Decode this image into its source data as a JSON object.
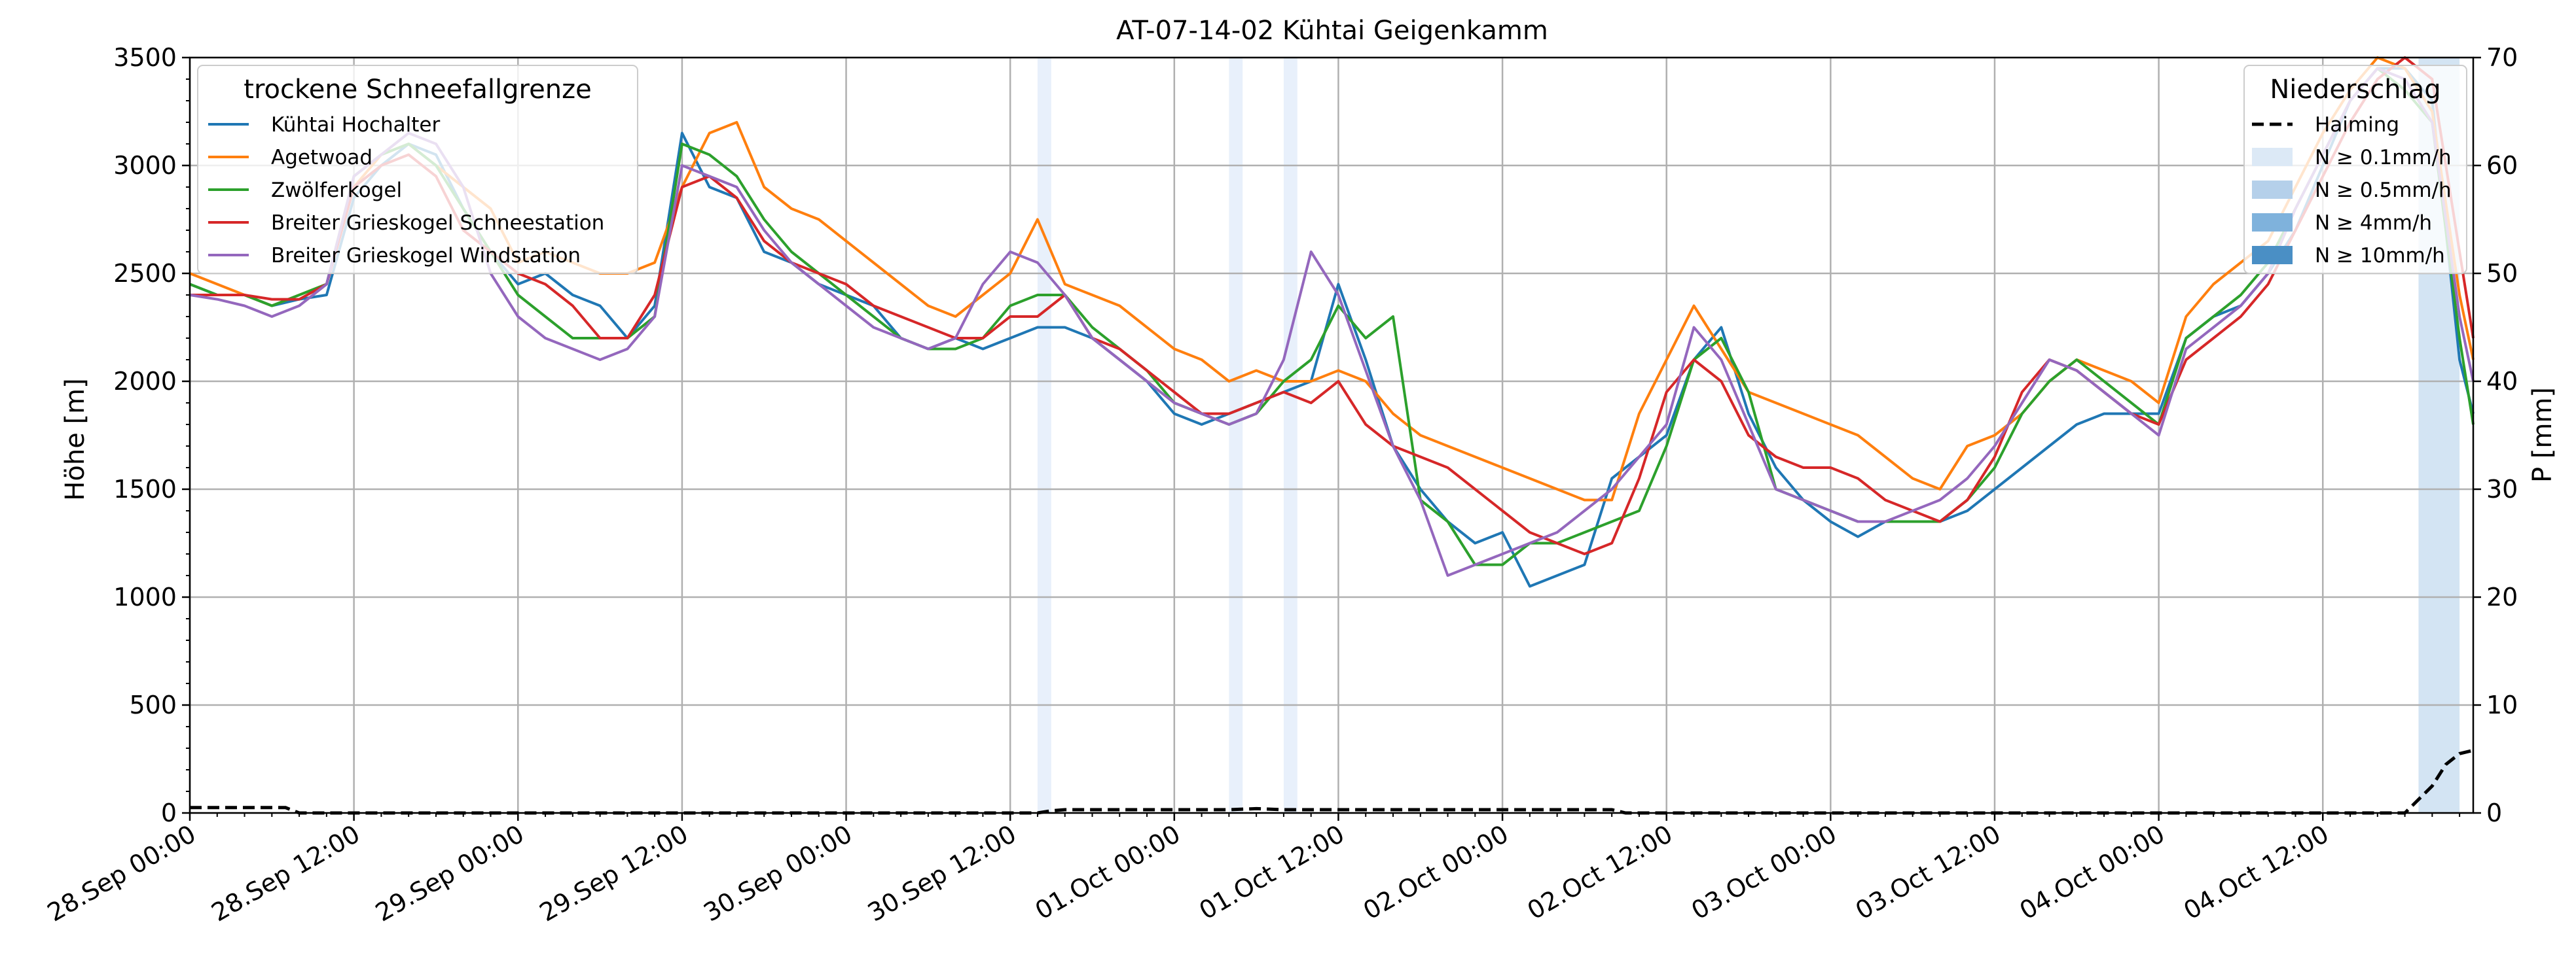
{
  "chart_data": {
    "type": "line",
    "title": "AT-07-14-02 Kühtai Geigenkamm",
    "ylabel_left": "Höhe [m]",
    "ylabel_right": "P [mm]",
    "ylim_left": [
      0,
      3500
    ],
    "ylim_right": [
      0,
      70
    ],
    "yticks_left": [
      0,
      500,
      1000,
      1500,
      2000,
      2500,
      3000,
      3500
    ],
    "yticks_right": [
      0,
      10,
      20,
      30,
      40,
      50,
      60,
      70
    ],
    "xlim_hours": [
      0,
      167
    ],
    "x_unit": "hours since 28.Sep 00:00",
    "xticks": [
      {
        "h": 0,
        "label": "28.Sep 00:00"
      },
      {
        "h": 12,
        "label": "28.Sep 12:00"
      },
      {
        "h": 24,
        "label": "29.Sep 00:00"
      },
      {
        "h": 36,
        "label": "29.Sep 12:00"
      },
      {
        "h": 48,
        "label": "30.Sep 00:00"
      },
      {
        "h": 60,
        "label": "30.Sep 12:00"
      },
      {
        "h": 72,
        "label": "01.Oct 00:00"
      },
      {
        "h": 84,
        "label": "01.Oct 12:00"
      },
      {
        "h": 96,
        "label": "02.Oct 00:00"
      },
      {
        "h": 108,
        "label": "02.Oct 12:00"
      },
      {
        "h": 120,
        "label": "03.Oct 00:00"
      },
      {
        "h": 132,
        "label": "03.Oct 12:00"
      },
      {
        "h": 144,
        "label": "04.Oct 00:00"
      },
      {
        "h": 156,
        "label": "04.Oct 12:00"
      }
    ],
    "legend_left": {
      "title": "trockene Schneefallgrenze",
      "position": "top-left"
    },
    "legend_right": {
      "title": "Niederschlag",
      "position": "top-right",
      "entries": [
        {
          "label": "Haiming",
          "style": "dashed",
          "color": "#000000"
        },
        {
          "label": "N ≥ 0.1mm/h",
          "color": "#dce9f6"
        },
        {
          "label": "N ≥ 0.5mm/h",
          "color": "#b5d0ea"
        },
        {
          "label": "N ≥ 4mm/h",
          "color": "#7fb2dc"
        },
        {
          "label": "N ≥ 10mm/h",
          "color": "#4a8fc5"
        }
      ]
    },
    "precip_bands": [
      {
        "start": 62,
        "end": 63,
        "level": "N ≥ 0.1mm/h",
        "color": "#e8f0fb"
      },
      {
        "start": 76,
        "end": 77,
        "level": "N ≥ 0.1mm/h",
        "color": "#e8f0fb"
      },
      {
        "start": 80,
        "end": 81,
        "level": "N ≥ 0.1mm/h",
        "color": "#e8f0fb"
      },
      {
        "start": 163,
        "end": 166,
        "level": "N ≥ 0.5mm/h",
        "color": "#d3e4f3"
      }
    ],
    "precip_series": {
      "name": "Haiming",
      "style": "dashed",
      "color": "#000000",
      "x": [
        0,
        7,
        8,
        62,
        63,
        64,
        76,
        78,
        80,
        81,
        104,
        105,
        162,
        164,
        165,
        166,
        167
      ],
      "y": [
        0.5,
        0.5,
        0,
        0,
        0.2,
        0.3,
        0.3,
        0.4,
        0.3,
        0.3,
        0.3,
        0,
        0,
        2.5,
        4.5,
        5.5,
        5.8
      ]
    },
    "series": [
      {
        "name": "Kühtai Hochalter",
        "color": "#1f77b4",
        "x": [
          0,
          2,
          4,
          6,
          8,
          10,
          12,
          14,
          16,
          18,
          20,
          22,
          24,
          26,
          28,
          30,
          32,
          34,
          36,
          38,
          40,
          42,
          44,
          46,
          48,
          50,
          52,
          54,
          56,
          58,
          60,
          62,
          64,
          66,
          68,
          70,
          72,
          74,
          76,
          78,
          80,
          82,
          84,
          86,
          88,
          90,
          92,
          94,
          96,
          98,
          100,
          102,
          104,
          106,
          108,
          110,
          112,
          114,
          116,
          118,
          120,
          122,
          124,
          126,
          128,
          130,
          132,
          134,
          136,
          138,
          140,
          142,
          144,
          146,
          148,
          150,
          152,
          154,
          156,
          158,
          160,
          162,
          164,
          166,
          167
        ],
        "y": [
          2450,
          2400,
          2400,
          2350,
          2380,
          2400,
          2850,
          3000,
          3100,
          3050,
          2800,
          2600,
          2450,
          2500,
          2400,
          2350,
          2200,
          2350,
          3150,
          2900,
          2850,
          2600,
          2550,
          2450,
          2400,
          2350,
          2200,
          2150,
          2200,
          2150,
          2200,
          2250,
          2250,
          2200,
          2100,
          2000,
          1850,
          1800,
          1850,
          1900,
          1950,
          2000,
          2450,
          2100,
          1700,
          1500,
          1350,
          1250,
          1300,
          1050,
          1100,
          1150,
          1550,
          1650,
          1750,
          2100,
          2250,
          1850,
          1600,
          1450,
          1350,
          1280,
          1350,
          1350,
          1350,
          1400,
          1500,
          1600,
          1700,
          1800,
          1850,
          1850,
          1850,
          2200,
          2300,
          2350,
          2500,
          2700,
          3000,
          3300,
          3450,
          3450,
          3300,
          2100,
          1850
        ]
      },
      {
        "name": "Agetwoad",
        "color": "#ff7f0e",
        "x": [
          0,
          2,
          4,
          6,
          8,
          10,
          12,
          14,
          16,
          18,
          20,
          22,
          24,
          26,
          28,
          30,
          32,
          34,
          36,
          38,
          40,
          42,
          44,
          46,
          48,
          50,
          52,
          54,
          56,
          58,
          60,
          62,
          64,
          66,
          68,
          70,
          72,
          74,
          76,
          78,
          80,
          82,
          84,
          86,
          88,
          90,
          92,
          94,
          96,
          98,
          100,
          102,
          104,
          106,
          108,
          110,
          112,
          114,
          116,
          118,
          120,
          122,
          124,
          126,
          128,
          130,
          132,
          134,
          136,
          138,
          140,
          142,
          144,
          146,
          148,
          150,
          152,
          154,
          156,
          158,
          160,
          162,
          164,
          166,
          167
        ],
        "y": [
          2500,
          2450,
          2400,
          2350,
          2400,
          2450,
          2900,
          3050,
          3100,
          3000,
          2900,
          2800,
          2550,
          2600,
          2550,
          2500,
          2500,
          2550,
          2900,
          3150,
          3200,
          2900,
          2800,
          2750,
          2650,
          2550,
          2450,
          2350,
          2300,
          2400,
          2500,
          2750,
          2450,
          2400,
          2350,
          2250,
          2150,
          2100,
          2000,
          2050,
          2000,
          2000,
          2050,
          2000,
          1850,
          1750,
          1700,
          1650,
          1600,
          1550,
          1500,
          1450,
          1450,
          1850,
          2100,
          2350,
          2150,
          1950,
          1900,
          1850,
          1800,
          1750,
          1650,
          1550,
          1500,
          1700,
          1750,
          1850,
          2000,
          2100,
          2050,
          2000,
          1900,
          2300,
          2450,
          2550,
          2650,
          2900,
          3150,
          3350,
          3500,
          3450,
          3250,
          2400,
          2100
        ]
      },
      {
        "name": "Zwölferkogel",
        "color": "#2ca02c",
        "x": [
          0,
          2,
          4,
          6,
          8,
          10,
          12,
          14,
          16,
          18,
          20,
          22,
          24,
          26,
          28,
          30,
          32,
          34,
          36,
          38,
          40,
          42,
          44,
          46,
          48,
          50,
          52,
          54,
          56,
          58,
          60,
          62,
          64,
          66,
          68,
          70,
          72,
          74,
          76,
          78,
          80,
          82,
          84,
          86,
          88,
          90,
          92,
          94,
          96,
          98,
          100,
          102,
          104,
          106,
          108,
          110,
          112,
          114,
          116,
          118,
          120,
          122,
          124,
          126,
          128,
          130,
          132,
          134,
          136,
          138,
          140,
          142,
          144,
          146,
          148,
          150,
          152,
          154,
          156,
          158,
          160,
          162,
          164,
          166,
          167
        ],
        "y": [
          2450,
          2400,
          2400,
          2350,
          2400,
          2450,
          2950,
          3050,
          3100,
          3000,
          2800,
          2600,
          2400,
          2300,
          2200,
          2200,
          2200,
          2300,
          3100,
          3050,
          2950,
          2750,
          2600,
          2500,
          2400,
          2300,
          2200,
          2150,
          2150,
          2200,
          2350,
          2400,
          2400,
          2250,
          2150,
          2050,
          1900,
          1850,
          1800,
          1850,
          2000,
          2100,
          2350,
          2200,
          2300,
          1450,
          1350,
          1150,
          1150,
          1250,
          1250,
          1300,
          1350,
          1400,
          1700,
          2100,
          2200,
          1950,
          1500,
          1450,
          1400,
          1350,
          1350,
          1350,
          1350,
          1450,
          1600,
          1850,
          2000,
          2100,
          2000,
          1900,
          1800,
          2200,
          2300,
          2400,
          2550,
          2800,
          3050,
          3300,
          3450,
          3350,
          3200,
          2200,
          1800
        ]
      },
      {
        "name": "Breiter Grieskogel Schneestation",
        "color": "#d62728",
        "x": [
          0,
          2,
          4,
          6,
          8,
          10,
          12,
          14,
          16,
          18,
          20,
          22,
          24,
          26,
          28,
          30,
          32,
          34,
          36,
          38,
          40,
          42,
          44,
          46,
          48,
          50,
          52,
          54,
          56,
          58,
          60,
          62,
          64,
          66,
          68,
          70,
          72,
          74,
          76,
          78,
          80,
          82,
          84,
          86,
          88,
          90,
          92,
          94,
          96,
          98,
          100,
          102,
          104,
          106,
          108,
          110,
          112,
          114,
          116,
          118,
          120,
          122,
          124,
          126,
          128,
          130,
          132,
          134,
          136,
          138,
          140,
          142,
          144,
          146,
          148,
          150,
          152,
          154,
          156,
          158,
          160,
          162,
          164,
          166,
          167
        ],
        "y": [
          2400,
          2400,
          2400,
          2380,
          2380,
          2450,
          2900,
          3000,
          3050,
          2950,
          2700,
          2600,
          2500,
          2450,
          2350,
          2200,
          2200,
          2400,
          2900,
          2950,
          2850,
          2650,
          2550,
          2500,
          2450,
          2350,
          2300,
          2250,
          2200,
          2200,
          2300,
          2300,
          2400,
          2200,
          2150,
          2050,
          1950,
          1850,
          1850,
          1900,
          1950,
          1900,
          2000,
          1800,
          1700,
          1650,
          1600,
          1500,
          1400,
          1300,
          1250,
          1200,
          1250,
          1550,
          1950,
          2100,
          2000,
          1750,
          1650,
          1600,
          1600,
          1550,
          1450,
          1400,
          1350,
          1450,
          1650,
          1950,
          2100,
          2050,
          1950,
          1850,
          1800,
          2100,
          2200,
          2300,
          2450,
          2700,
          2950,
          3200,
          3400,
          3500,
          3400,
          2600,
          2200
        ]
      },
      {
        "name": "Breiter Grieskogel Windstation",
        "color": "#9467bd",
        "x": [
          0,
          2,
          4,
          6,
          8,
          10,
          12,
          14,
          16,
          18,
          20,
          22,
          24,
          26,
          28,
          30,
          32,
          34,
          36,
          38,
          40,
          42,
          44,
          46,
          48,
          50,
          52,
          54,
          56,
          58,
          60,
          62,
          64,
          66,
          68,
          70,
          72,
          74,
          76,
          78,
          80,
          82,
          84,
          86,
          88,
          90,
          92,
          94,
          96,
          98,
          100,
          102,
          104,
          106,
          108,
          110,
          112,
          114,
          116,
          118,
          120,
          122,
          124,
          126,
          128,
          130,
          132,
          134,
          136,
          138,
          140,
          142,
          144,
          146,
          148,
          150,
          152,
          154,
          156,
          158,
          160,
          162,
          164,
          166,
          167
        ],
        "y": [
          2400,
          2380,
          2350,
          2300,
          2350,
          2450,
          2950,
          3050,
          3150,
          3100,
          2900,
          2500,
          2300,
          2200,
          2150,
          2100,
          2150,
          2300,
          3000,
          2950,
          2900,
          2700,
          2550,
          2450,
          2350,
          2250,
          2200,
          2150,
          2200,
          2450,
          2600,
          2550,
          2400,
          2200,
          2100,
          2000,
          1900,
          1850,
          1800,
          1850,
          2100,
          2600,
          2400,
          2050,
          1700,
          1450,
          1100,
          1150,
          1200,
          1250,
          1300,
          1400,
          1500,
          1650,
          1800,
          2250,
          2100,
          1800,
          1500,
          1450,
          1400,
          1350,
          1350,
          1400,
          1450,
          1550,
          1700,
          1900,
          2100,
          2050,
          1950,
          1850,
          1750,
          2150,
          2250,
          2350,
          2500,
          2800,
          3050,
          3300,
          3450,
          3400,
          3200,
          2300,
          2000
        ]
      }
    ]
  }
}
